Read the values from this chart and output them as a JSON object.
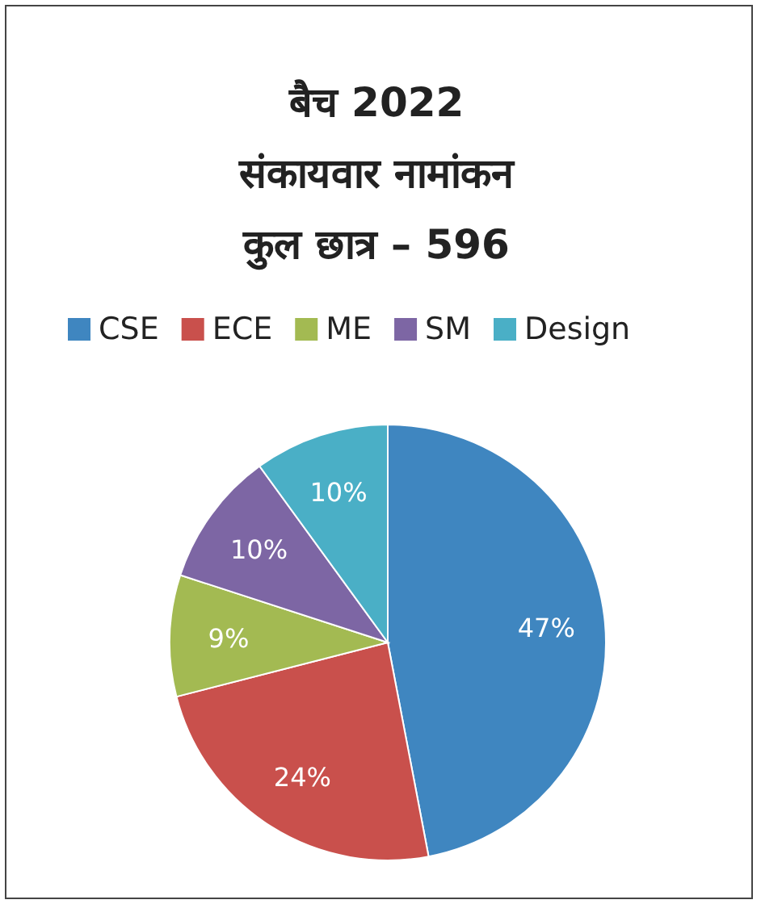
{
  "chart_data": {
    "type": "pie",
    "title": "बैच 2022\nसंकायवार नामांकन\nकुल छात्र – 596",
    "legend": "top",
    "categories": [
      "CSE",
      "ECE",
      "ME",
      "SM",
      "Design"
    ],
    "values": [
      47,
      24,
      9,
      10,
      10
    ],
    "value_labels": [
      "47%",
      "24%",
      "9%",
      "10%",
      "10%"
    ],
    "colors": [
      "#3f86c0",
      "#c9504c",
      "#a3ba52",
      "#7d66a4",
      "#4aafc6"
    ]
  }
}
